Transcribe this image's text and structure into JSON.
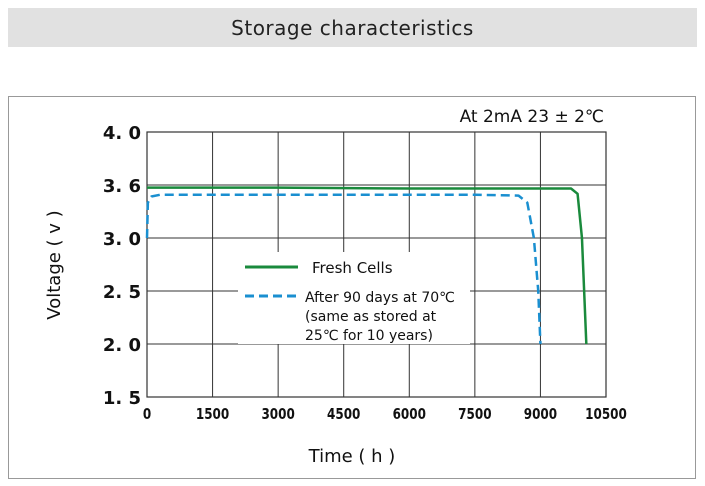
{
  "header": {
    "title": "Storage characteristics"
  },
  "chart_data": {
    "type": "line",
    "title": "Storage characteristics",
    "annotation": "At  2mA   23 ± 2℃",
    "xlabel": "Time ( h )",
    "ylabel": "Voltage ( v )",
    "xlim": [
      0,
      10500
    ],
    "x_ticks": [
      "0",
      "1500",
      "3000",
      "4500",
      "6000",
      "7500",
      "9000",
      "10500"
    ],
    "x_tick_values": [
      0,
      1500,
      3000,
      4500,
      6000,
      7500,
      9000,
      10500
    ],
    "y_ticks": [
      "4. 0",
      "3. 6",
      "3. 0",
      "2. 5",
      "2. 0",
      "1. 5"
    ],
    "y_tick_values": [
      4.0,
      3.6,
      3.0,
      2.5,
      2.0,
      1.5
    ],
    "grid": true,
    "series": [
      {
        "name": "Fresh Cells",
        "color": "#1a8a3c",
        "dash": false,
        "x": [
          0,
          3000,
          6000,
          9000,
          9700,
          9850,
          9950,
          10000,
          10050
        ],
        "y": [
          3.57,
          3.57,
          3.56,
          3.56,
          3.56,
          3.5,
          3.0,
          2.5,
          2.0
        ]
      },
      {
        "name": "After 90 days  at 70℃",
        "legend_lines": [
          "After 90 days  at 70℃",
          "(same as stored at",
          "25℃ for 10 years)"
        ],
        "color": "#1a8fd0",
        "dash": true,
        "x": [
          0,
          20,
          100,
          300,
          1500,
          4500,
          7500,
          8500,
          8700,
          8850,
          8950,
          8980,
          9000
        ],
        "y": [
          3.0,
          3.4,
          3.47,
          3.49,
          3.49,
          3.49,
          3.49,
          3.48,
          3.4,
          3.0,
          2.5,
          2.2,
          2.0
        ]
      }
    ]
  }
}
